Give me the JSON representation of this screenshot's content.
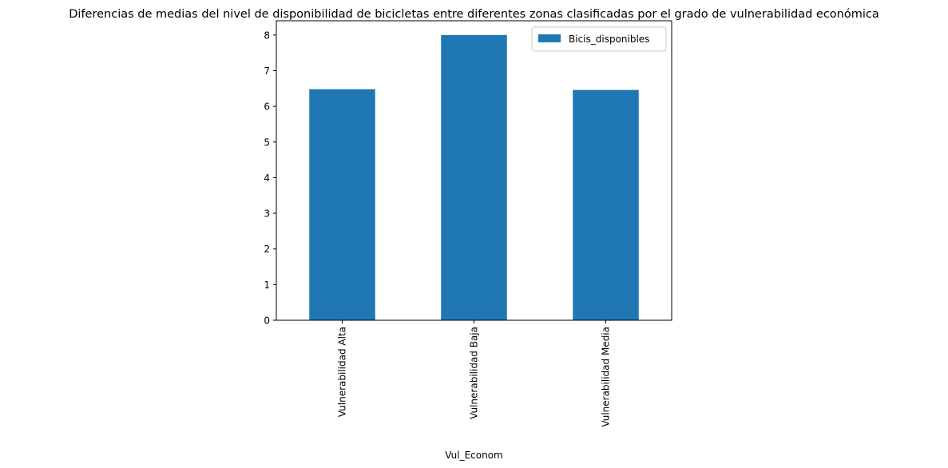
{
  "chart_data": {
    "type": "bar",
    "title": "Diferencias de medias del nivel de disponibilidad de bicicletas entre diferentes zonas clasificadas por el grado de vulnerabilidad económica",
    "xlabel": "Vul_Econom",
    "ylabel": "",
    "categories": [
      "Vulnerabilidad Alta",
      "Vulnerabilidad Baja",
      "Vulnerabilidad Media"
    ],
    "series": [
      {
        "name": "Bicis_disponibles",
        "values": [
          6.48,
          8.0,
          6.46
        ],
        "color": "#1f77b4"
      }
    ],
    "ylim": [
      0,
      8.4
    ],
    "yticks": [
      "0",
      "1",
      "2",
      "3",
      "4",
      "5",
      "6",
      "7",
      "8"
    ],
    "grid": false,
    "legend_position": "top-right"
  }
}
